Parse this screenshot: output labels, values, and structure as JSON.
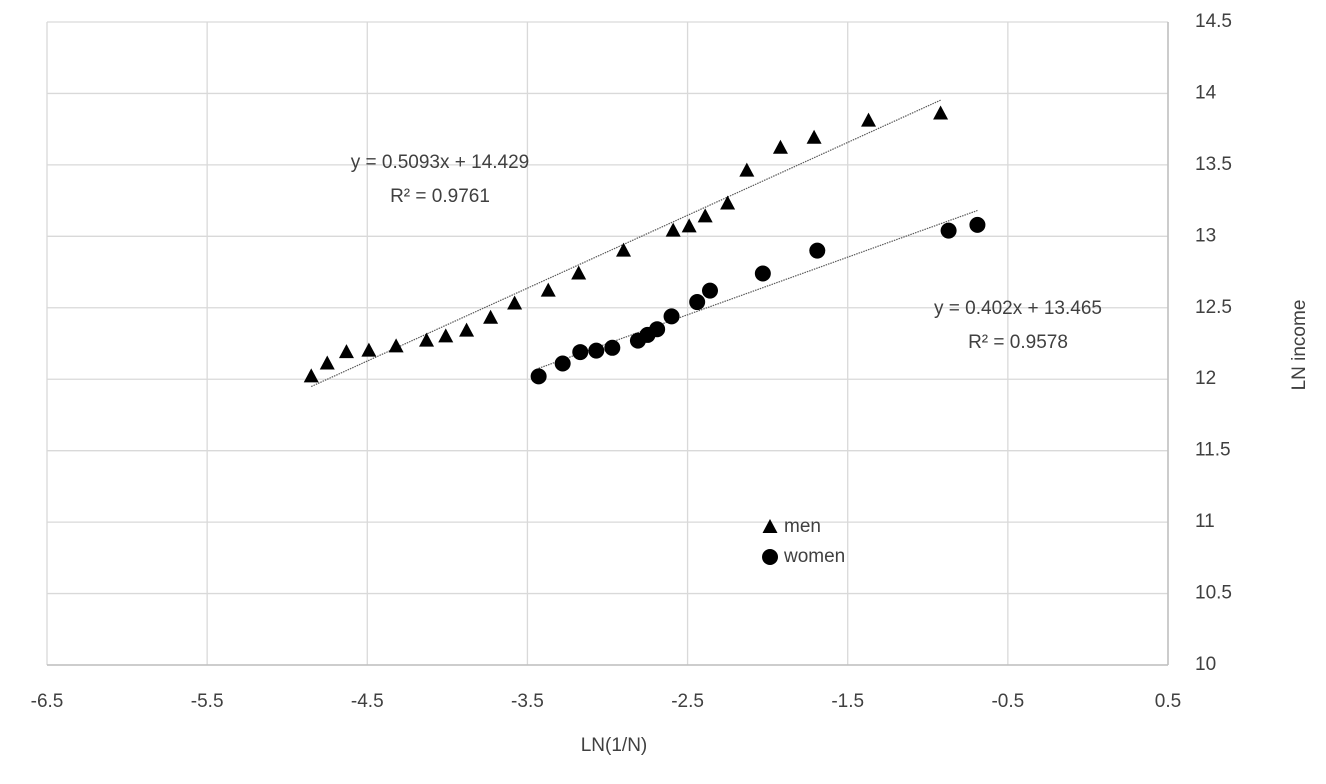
{
  "chart_data": {
    "type": "scatter",
    "xlabel": "LN(1/N)",
    "ylabel": "LN income",
    "xlim": [
      -6.5,
      0.5
    ],
    "xticks": [
      -6.5,
      -5.5,
      -4.5,
      -3.5,
      -2.5,
      -1.5,
      -0.5,
      0.5
    ],
    "ylim": [
      10,
      14.5
    ],
    "yticks": [
      10,
      10.5,
      11,
      11.5,
      12,
      12.5,
      13,
      13.5,
      14,
      14.5
    ],
    "grid": true,
    "legend": "bottom-center",
    "y_axis_side": "right",
    "series": [
      {
        "name": "men",
        "color": "#000000",
        "marker": "triangle",
        "x": [
          -4.85,
          -4.75,
          -4.63,
          -4.49,
          -4.32,
          -4.13,
          -4.01,
          -3.88,
          -3.73,
          -3.58,
          -3.37,
          -3.18,
          -2.9,
          -2.59,
          -2.49,
          -2.39,
          -2.25,
          -2.13,
          -1.92,
          -1.71,
          -1.37,
          -0.92
        ],
        "values": [
          12.02,
          12.11,
          12.19,
          12.2,
          12.23,
          12.27,
          12.3,
          12.34,
          12.43,
          12.53,
          12.62,
          12.74,
          12.9,
          13.04,
          13.07,
          13.14,
          13.23,
          13.46,
          13.62,
          13.69,
          13.81,
          13.86
        ],
        "trendline": {
          "equation": "y = 0.5093x + 14.429",
          "r_squared": "R² = 0.9761"
        }
      },
      {
        "name": "women",
        "color": "#000000",
        "marker": "circle",
        "x": [
          -3.43,
          -3.28,
          -3.17,
          -3.07,
          -2.97,
          -2.81,
          -2.75,
          -2.69,
          -2.6,
          -2.44,
          -2.36,
          -2.03,
          -1.69,
          -0.87,
          -0.69
        ],
        "values": [
          12.02,
          12.11,
          12.19,
          12.2,
          12.22,
          12.27,
          12.31,
          12.35,
          12.44,
          12.54,
          12.62,
          12.74,
          12.9,
          13.04,
          13.08
        ],
        "trendline": {
          "equation": "y = 0.402x + 13.465",
          "r_squared": "R² = 0.9578"
        }
      }
    ]
  }
}
